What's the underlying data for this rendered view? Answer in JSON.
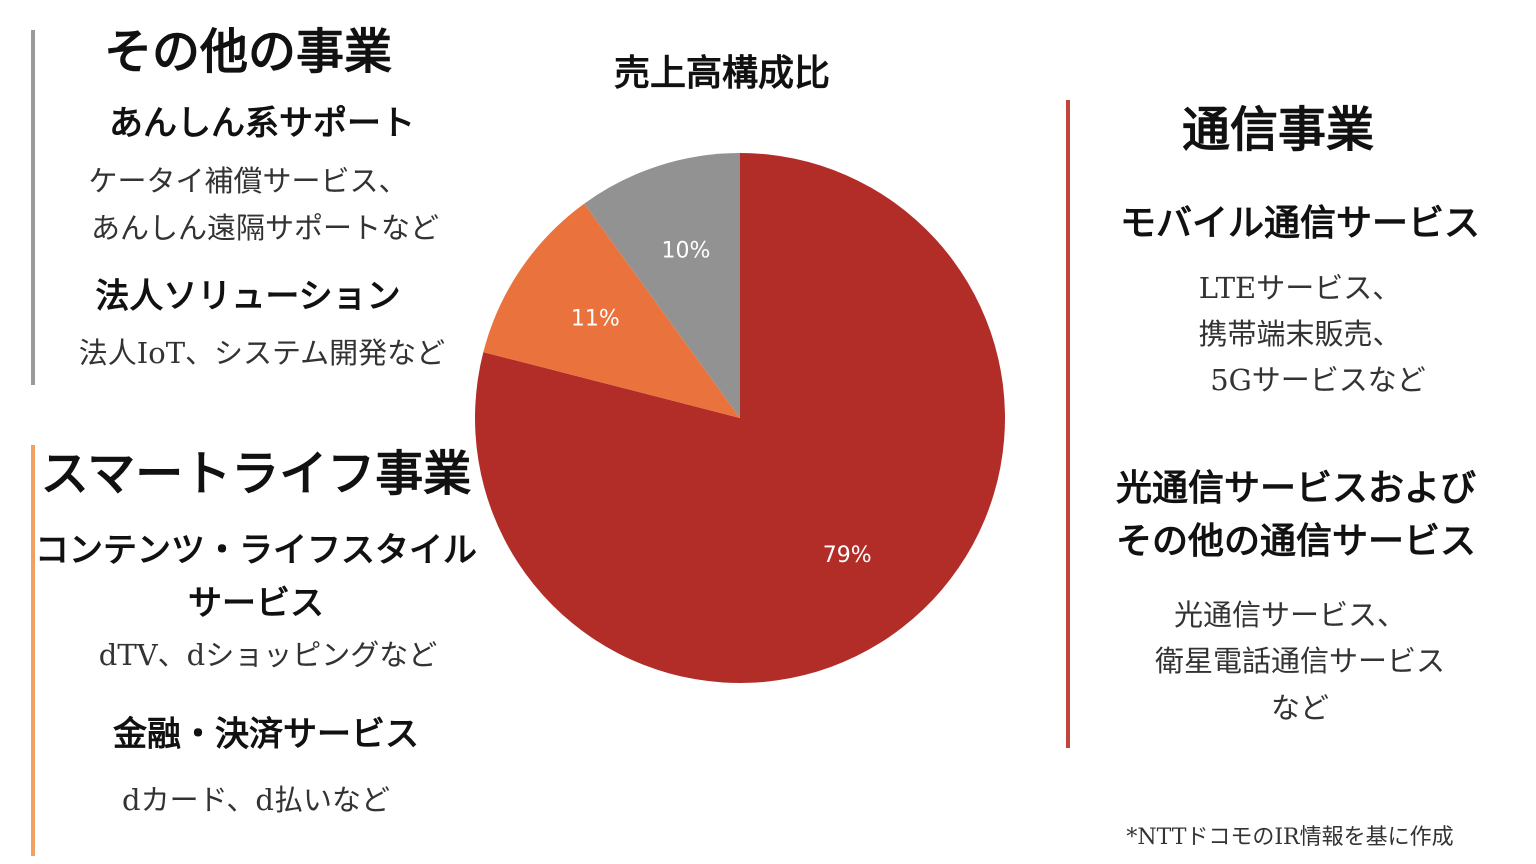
{
  "chart_data": {
    "type": "pie",
    "title": "売上高構成比",
    "categories": [
      null,
      null,
      null
    ],
    "values": [
      79,
      11,
      10
    ],
    "value_labels": [
      "79%",
      "11%",
      "10%"
    ],
    "colors": [
      "#b22d28",
      "#ea733d",
      "#929292"
    ]
  },
  "panels": [
    {
      "title": "その他の事業",
      "items": [
        {
          "heading": [
            "あんしん系サポート"
          ],
          "lines": [
            "ケータイ補償サービス、",
            "あんしん遠隔サポートなど"
          ]
        },
        {
          "heading": [
            "法人ソリューション"
          ],
          "lines": [
            "法人IoT、システム開発など"
          ]
        }
      ]
    },
    {
      "title": "スマートライフ事業",
      "items": [
        {
          "heading": [
            "コンテンツ・ライフスタイル",
            "サービス"
          ],
          "lines": [
            "dTV、dショッピングなど"
          ]
        },
        {
          "heading": [
            "金融・決済サービス"
          ],
          "lines": [
            "dカード、d払いなど"
          ]
        }
      ]
    },
    {
      "title": "通信事業",
      "items": [
        {
          "heading": [
            "モバイル通信サービス"
          ],
          "lines": [
            "LTEサービス、",
            "携帯端末販売、",
            "5Gサービスなど"
          ]
        },
        {
          "heading": [
            "光通信サービスおよび",
            "その他の通信サービス"
          ],
          "lines": [
            "光通信サービス、",
            "衛星電話通信サービス",
            "など"
          ]
        }
      ]
    }
  ],
  "footnote": "*NTTドコモのIR情報を基に作成"
}
